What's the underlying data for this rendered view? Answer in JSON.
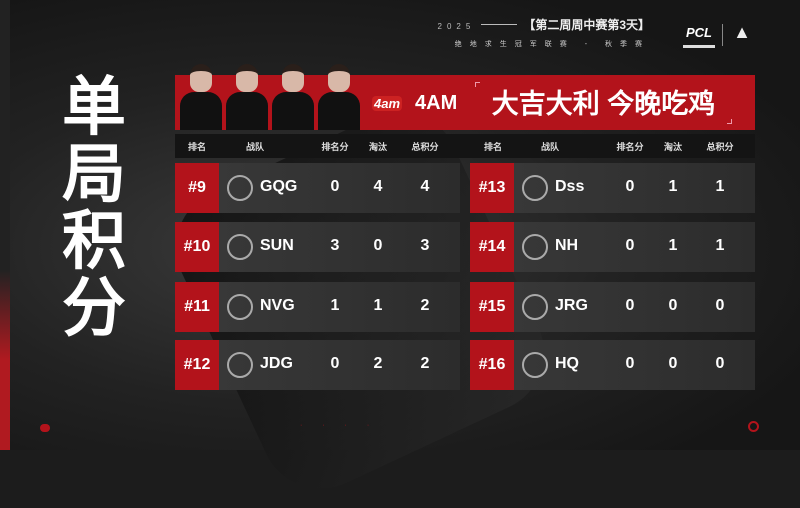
{
  "header": {
    "year": "2025",
    "stage": "【第二周周中赛第3天】",
    "subtitle": "绝地求生冠军联赛 - 秋季赛",
    "logo_pcl": "PCL",
    "logo_aorus": "AORUS"
  },
  "title": "单局积分",
  "banner": {
    "team_logo": "4am",
    "team": "4AM",
    "slogan": "大吉大利 今晚吃鸡"
  },
  "columns": [
    "排名",
    "战队",
    "排名分",
    "淘汰",
    "总积分"
  ],
  "left": [
    {
      "rank": "#9",
      "team": "GQG",
      "placement": "0",
      "kills": "4",
      "total": "4"
    },
    {
      "rank": "#10",
      "team": "SUN",
      "placement": "3",
      "kills": "0",
      "total": "3"
    },
    {
      "rank": "#11",
      "team": "NVG",
      "placement": "1",
      "kills": "1",
      "total": "2"
    },
    {
      "rank": "#12",
      "team": "JDG",
      "placement": "0",
      "kills": "2",
      "total": "2"
    }
  ],
  "right": [
    {
      "rank": "#13",
      "team": "Dss",
      "placement": "0",
      "kills": "1",
      "total": "1"
    },
    {
      "rank": "#14",
      "team": "NH",
      "placement": "0",
      "kills": "1",
      "total": "1"
    },
    {
      "rank": "#15",
      "team": "JRG",
      "placement": "0",
      "kills": "0",
      "total": "0"
    },
    {
      "rank": "#16",
      "team": "HQ",
      "placement": "0",
      "kills": "0",
      "total": "0"
    }
  ],
  "colors": {
    "accent": "#b3131b",
    "background": "#1c1c1c"
  }
}
